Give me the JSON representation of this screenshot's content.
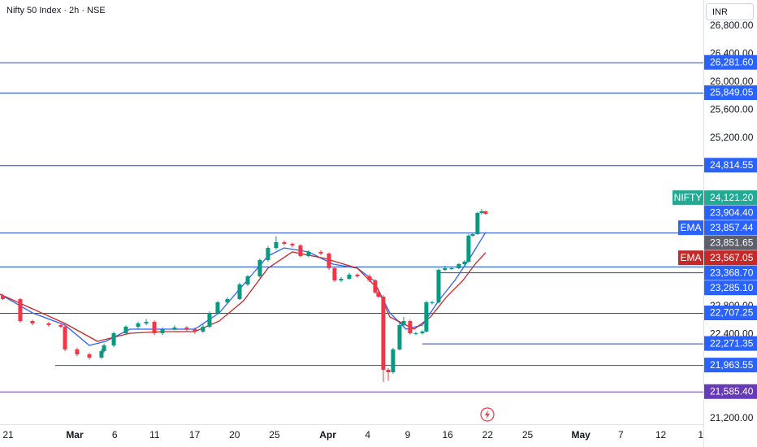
{
  "chart_data": {
    "type": "candlestick",
    "title": "Nifty 50 Index · 2h · NSE",
    "currency": "INR",
    "up_color": "#089981",
    "down_color": "#f23645",
    "x": [
      -0.4,
      0.91,
      1.83,
      3.05,
      3.96,
      4.27,
      5.18,
      6.1,
      7.01,
      7.2,
      7.93,
      8.84,
      9.76,
      10.37,
      10.98,
      11.59,
      12.5,
      13.41,
      14.02,
      14.63,
      15.12,
      15.73,
      16.46,
      17.38,
      17.99,
      18.9,
      19.51,
      20.12,
      20.73,
      21.34,
      21.95,
      22.56,
      23.48,
      24.09,
      24.51,
      25.0,
      25.61,
      26.22,
      27.13,
      27.56,
      27.8,
      28.17,
      28.54,
      28.9,
      29.39,
      29.7,
      30.18,
      30.61,
      31.1,
      31.4,
      31.83,
      32.32,
      32.8,
      33.29,
      33.84,
      34.27,
      34.57,
      34.88,
      35.24,
      35.55,
      35.85
    ],
    "open": [
      22950,
      22904,
      22591,
      22557,
      22533,
      22510,
      22186,
      22116,
      22070,
      22162,
      22244,
      22417,
      22510,
      22557,
      22580,
      22417,
      22475,
      22499,
      22475,
      22441,
      22510,
      22707,
      22858,
      22904,
      23113,
      23229,
      23461,
      23635,
      23716,
      23693,
      23670,
      23519,
      23577,
      23554,
      23345,
      23171,
      23194,
      23252,
      23229,
      23171,
      22997,
      22939,
      21896,
      21861,
      22186,
      22533,
      22591,
      22417,
      22417,
      22441,
      22858,
      22858,
      23322,
      23345,
      23345,
      23403,
      23438,
      23809,
      23832,
      24133,
      24156
    ],
    "high": [
      22980,
      22920,
      22610,
      22580,
      22560,
      22530,
      22210,
      22140,
      22190,
      22270,
      22440,
      22530,
      22580,
      22620,
      22600,
      22500,
      22530,
      22520,
      22500,
      22540,
      22730,
      22880,
      22930,
      23140,
      23250,
      23480,
      23660,
      23800,
      23740,
      23710,
      23690,
      23600,
      23600,
      23570,
      23360,
      23220,
      23280,
      23270,
      23260,
      23190,
      23010,
      22960,
      21920,
      22210,
      22560,
      22650,
      22610,
      22440,
      22460,
      22880,
      22880,
      23340,
      23380,
      23370,
      23420,
      23460,
      23830,
      23850,
      24150,
      24190,
      24170
    ],
    "low": [
      22890,
      22570,
      22530,
      22510,
      22490,
      22160,
      22090,
      22040,
      22050,
      22140,
      22220,
      22390,
      22480,
      22530,
      22390,
      22390,
      22460,
      22450,
      22410,
      22420,
      22490,
      22690,
      22840,
      22890,
      23090,
      23210,
      23440,
      23610,
      23670,
      23640,
      23500,
      23500,
      23530,
      23320,
      23150,
      23150,
      23180,
      23210,
      23150,
      22980,
      22920,
      21722,
      21740,
      21840,
      22170,
      22510,
      22400,
      22390,
      22400,
      22430,
      22830,
      22840,
      23300,
      23320,
      23330,
      23380,
      23420,
      23790,
      23820,
      24110,
      24110
    ],
    "close": [
      22904,
      22591,
      22557,
      22533,
      22510,
      22186,
      22116,
      22070,
      22162,
      22244,
      22417,
      22510,
      22557,
      22580,
      22417,
      22475,
      22499,
      22475,
      22441,
      22510,
      22707,
      22858,
      22904,
      23113,
      23229,
      23461,
      23635,
      23716,
      23693,
      23670,
      23519,
      23577,
      23554,
      23345,
      23171,
      23194,
      23252,
      23229,
      23171,
      22997,
      22939,
      21896,
      21861,
      22186,
      22533,
      22591,
      22417,
      22417,
      22441,
      22858,
      22858,
      23322,
      23345,
      23345,
      23403,
      23438,
      23809,
      23832,
      24133,
      24156,
      24121.2
    ],
    "series": [
      {
        "name": "EMA",
        "color": "#2962ff",
        "x": [
          -0.61,
          1.83,
          4.27,
          6.1,
          7.32,
          9.15,
          11.59,
          14.02,
          15.85,
          17.68,
          19.51,
          20.73,
          22.56,
          24.39,
          26.22,
          27.44,
          28.66,
          29.88,
          31.1,
          32.32,
          33.54,
          34.76,
          35.85
        ],
        "values": [
          22974,
          22707,
          22533,
          22244,
          22302,
          22475,
          22475,
          22475,
          22707,
          23113,
          23519,
          23635,
          23577,
          23403,
          23345,
          23171,
          22707,
          22475,
          22533,
          22881,
          23171,
          23519,
          23857.44
        ]
      },
      {
        "name": "EMA",
        "color": "#c62828",
        "x": [
          -0.61,
          1.83,
          4.27,
          6.71,
          9.15,
          11.59,
          14.02,
          15.85,
          17.68,
          19.51,
          21.34,
          23.78,
          26.22,
          27.74,
          28.66,
          30.49,
          31.71,
          32.93,
          34.15,
          35.06,
          35.85
        ],
        "values": [
          22974,
          22765,
          22557,
          22302,
          22417,
          22441,
          22441,
          22591,
          22881,
          23345,
          23577,
          23484,
          23345,
          23055,
          22649,
          22475,
          22649,
          22939,
          23171,
          23403,
          23567.05
        ]
      }
    ],
    "levels": [
      {
        "value": 26281.6,
        "label": "26,281.60",
        "color": "#1848cc",
        "label_color": "#2962ff"
      },
      {
        "value": 25849.05,
        "label": "25,849.05",
        "color": "#1848cc",
        "label_color": "#2962ff"
      },
      {
        "value": 24814.55,
        "label": "24,814.55",
        "color": "#1848cc",
        "label_color": "#2962ff"
      },
      {
        "value": 23851.65,
        "label": "23,851.65",
        "color": "#1848cc",
        "label_color": "#5d606b"
      },
      {
        "value": 23368.7,
        "label": "23,368.70",
        "color": "#1848cc",
        "label_color": "#2962ff"
      },
      {
        "value": 23285.1,
        "label": "23,285.10",
        "color": "#1848cc",
        "label_color": "#2962ff",
        "from": 32.32
      },
      {
        "value": 22707.25,
        "label": "22,707.25",
        "color": "#1848cc",
        "label_color": "#2962ff"
      },
      {
        "value": 22271.35,
        "label": "22,271.35",
        "color": "#1848cc",
        "label_color": "#2962ff",
        "from": 31.1
      },
      {
        "value": 21963.55,
        "label": "21,963.55",
        "color": "#1848cc",
        "label_color": "#2962ff",
        "from": 3.54
      },
      {
        "value": 21585.4,
        "label": "21,585.40",
        "color": "#673ab7",
        "label_color": "#673ab7"
      }
    ],
    "price_labels": [
      {
        "name": "NIFTY",
        "value": 24121.2,
        "label": "24,121.20",
        "color": "#22ab94"
      },
      {
        "value": 23904.4,
        "label": "23,904.40",
        "color": "#2962ff"
      },
      {
        "name": "EMA",
        "value": 23857.44,
        "label": "23,857.44",
        "color": "#2962ff"
      },
      {
        "name": "EMA",
        "value": 23567.05,
        "label": "23,567.05",
        "color": "#c62828"
      }
    ],
    "xlim": [
      -0.61,
      52.2
    ],
    "ylim": [
      21119,
      27171
    ],
    "xticks": [
      {
        "value": 0,
        "label": "21"
      },
      {
        "value": 5,
        "label": "Mar"
      },
      {
        "value": 8,
        "label": "6"
      },
      {
        "value": 11,
        "label": "11"
      },
      {
        "value": 14,
        "label": "17"
      },
      {
        "value": 17,
        "label": "20"
      },
      {
        "value": 20,
        "label": "25"
      },
      {
        "value": 24,
        "label": "Apr"
      },
      {
        "value": 27,
        "label": "4"
      },
      {
        "value": 30,
        "label": "9"
      },
      {
        "value": 33,
        "label": "16"
      },
      {
        "value": 36,
        "label": "22"
      },
      {
        "value": 39,
        "label": "25"
      },
      {
        "value": 43,
        "label": "May"
      },
      {
        "value": 46,
        "label": "7"
      },
      {
        "value": 49,
        "label": "12"
      },
      {
        "value": 52,
        "label": "1"
      }
    ],
    "yticks": [
      {
        "value": 26800,
        "label": "26,800.00"
      },
      {
        "value": 26400,
        "label": "26,400.00"
      },
      {
        "value": 26000,
        "label": "26,000.00"
      },
      {
        "value": 25600,
        "label": "25,600.00"
      },
      {
        "value": 25200,
        "label": "25,200.00"
      },
      {
        "value": 22800,
        "label": "22,800.00"
      },
      {
        "value": 22400,
        "label": "22,400.00"
      },
      {
        "value": 21200,
        "label": "21,200.00"
      }
    ]
  }
}
